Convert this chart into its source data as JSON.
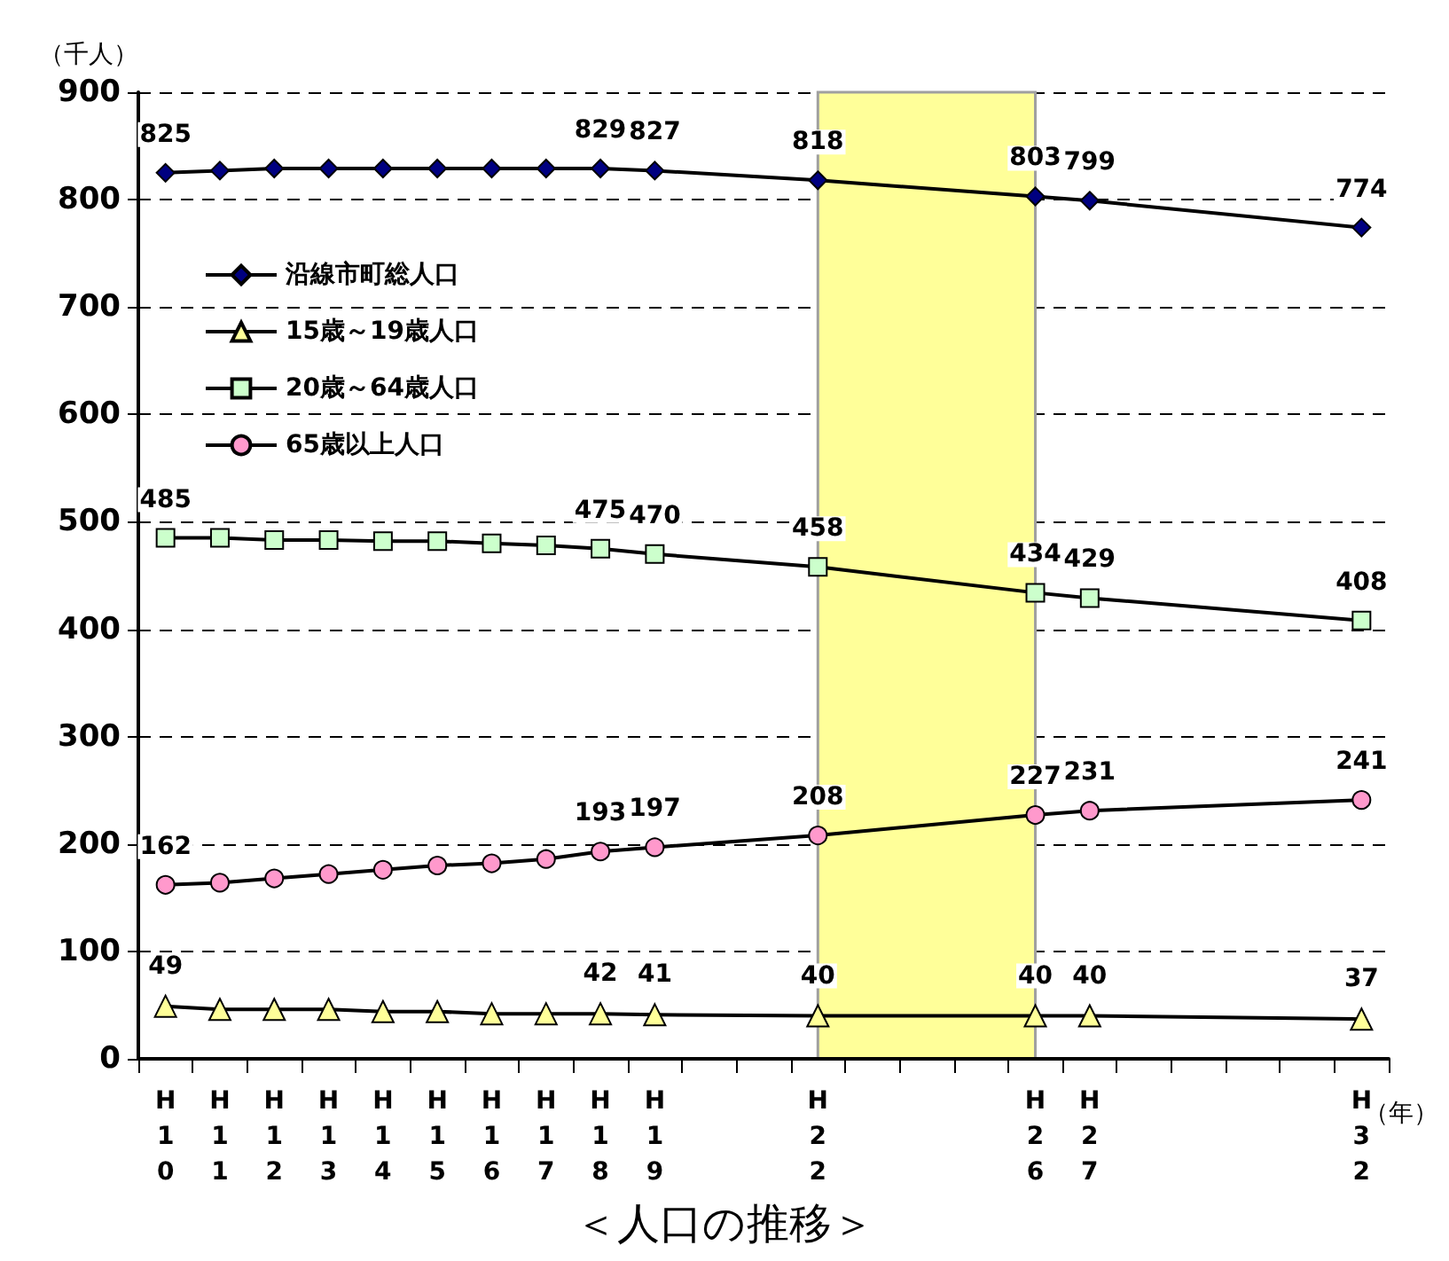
{
  "chart_data": {
    "type": "line",
    "title": "＜人口の推移＞",
    "ylabel": "（千人）",
    "annotations": [
      "（年）"
    ],
    "categories": [
      "H10",
      "H11",
      "H12",
      "H13",
      "H14",
      "H15",
      "H16",
      "H17",
      "H18",
      "H19",
      null,
      null,
      "H22",
      null,
      null,
      null,
      "H26",
      "H27",
      null,
      null,
      null,
      null,
      "H32"
    ],
    "ylim": [
      0,
      900
    ],
    "yticks": [
      0,
      100,
      200,
      300,
      400,
      500,
      600,
      700,
      800,
      900
    ],
    "grid": "y",
    "legend": "top left",
    "bands": [
      {
        "axis": "x",
        "from": "H22",
        "to": "H26",
        "color": "#ffff99"
      }
    ],
    "series": [
      {
        "name": "沿線市町総人口",
        "color": "#000080",
        "marker": "diamond",
        "values": [
          825,
          827,
          829,
          829,
          829,
          829,
          829,
          829,
          829,
          827,
          null,
          null,
          818,
          null,
          null,
          null,
          803,
          799,
          null,
          null,
          null,
          null,
          774
        ],
        "value_labels": [
          "825",
          null,
          null,
          null,
          null,
          null,
          null,
          null,
          "829",
          "827",
          null,
          null,
          "818",
          null,
          null,
          null,
          "803",
          "799",
          null,
          null,
          null,
          null,
          "774"
        ]
      },
      {
        "name": "15歳～19歳人口",
        "color": "#ffff99",
        "marker": "triangle",
        "values": [
          49,
          46,
          46,
          46,
          44,
          44,
          42,
          42,
          42,
          41,
          null,
          null,
          40,
          null,
          null,
          null,
          40,
          40,
          null,
          null,
          null,
          null,
          37
        ],
        "value_labels": [
          "49",
          null,
          null,
          null,
          null,
          null,
          null,
          null,
          "42",
          "41",
          null,
          null,
          "40",
          null,
          null,
          null,
          "40",
          "40",
          null,
          null,
          null,
          null,
          "37"
        ]
      },
      {
        "name": "20歳～64歳人口",
        "color": "#ccffcc",
        "marker": "square",
        "values": [
          485,
          485,
          483,
          483,
          482,
          482,
          480,
          478,
          475,
          470,
          null,
          null,
          458,
          null,
          null,
          null,
          434,
          429,
          null,
          null,
          null,
          null,
          408
        ],
        "value_labels": [
          "485",
          null,
          null,
          null,
          null,
          null,
          null,
          null,
          "475",
          "470",
          null,
          null,
          "458",
          null,
          null,
          null,
          "434",
          "429",
          null,
          null,
          null,
          null,
          "408"
        ]
      },
      {
        "name": "65歳以上人口",
        "color": "#ff99cc",
        "marker": "circle",
        "values": [
          162,
          164,
          168,
          172,
          176,
          180,
          182,
          186,
          193,
          197,
          null,
          null,
          208,
          null,
          null,
          null,
          227,
          231,
          null,
          null,
          null,
          null,
          241
        ],
        "value_labels": [
          "162",
          null,
          null,
          null,
          null,
          null,
          null,
          null,
          "193",
          "197",
          null,
          null,
          "208",
          null,
          null,
          null,
          "227",
          "231",
          null,
          null,
          null,
          null,
          "241"
        ]
      }
    ]
  }
}
